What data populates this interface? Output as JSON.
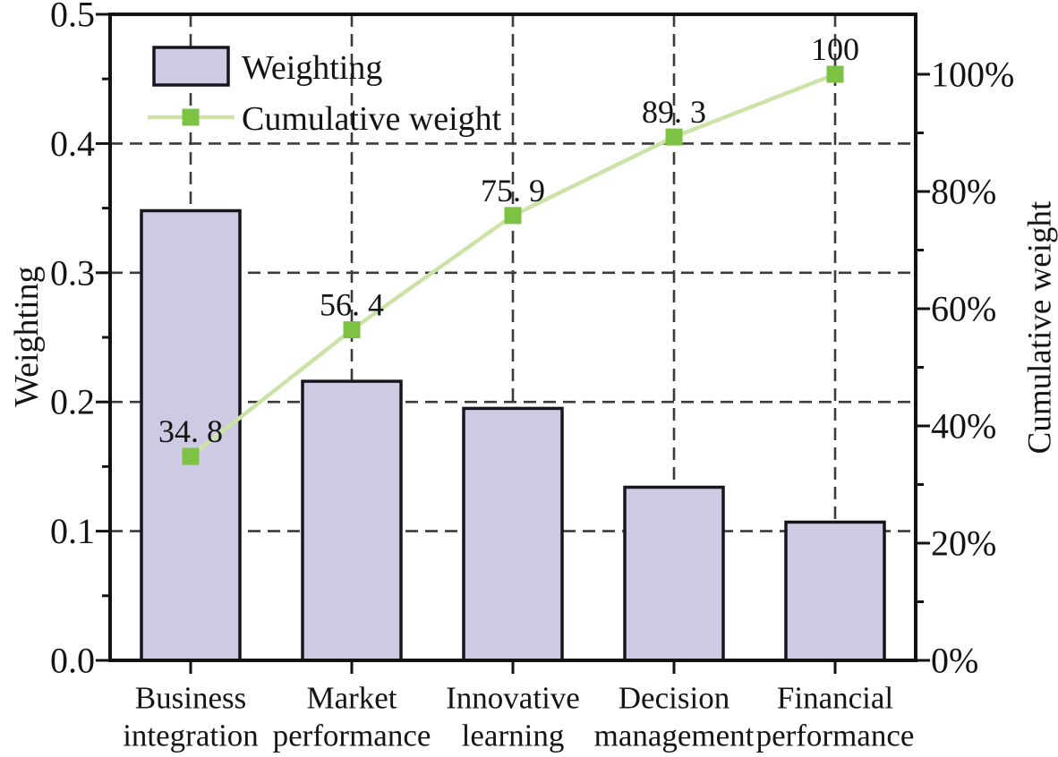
{
  "chart_data": {
    "type": "bar",
    "subtype": "pareto-combo (bars + cumulative line)",
    "title": "",
    "categories": [
      "Business integration",
      "Market performance",
      "Innovative learning",
      "Decision management",
      "Financial performance"
    ],
    "category_lines": [
      [
        "Business",
        "integration"
      ],
      [
        "Market",
        "performance"
      ],
      [
        "Innovative",
        "learning"
      ],
      [
        "Decision",
        "management"
      ],
      [
        "Financial",
        "performance"
      ]
    ],
    "series": [
      {
        "name": "Weighting",
        "type": "bar",
        "axis": "left",
        "values": [
          0.348,
          0.216,
          0.195,
          0.134,
          0.107
        ]
      },
      {
        "name": "Cumulative weight",
        "type": "line",
        "axis": "right",
        "values": [
          34.8,
          56.4,
          75.9,
          89.3,
          100
        ],
        "point_labels": [
          "34. 8",
          "56. 4",
          "75. 9",
          "89. 3",
          "100"
        ]
      }
    ],
    "left_axis": {
      "title": "Weighting",
      "min": 0,
      "max": 0.5,
      "major_ticks": [
        0,
        0.1,
        0.2,
        0.3,
        0.4,
        0.5
      ],
      "tick_labels": [
        "0.0",
        "0.1",
        "0.2",
        "0.3",
        "0.4",
        "0.5"
      ],
      "minor_ticks": [
        0.05,
        0.15,
        0.25,
        0.35,
        0.45
      ]
    },
    "right_axis": {
      "title": "Cumulative weight",
      "min": 0,
      "max": 110,
      "unit": "%",
      "major_ticks": [
        0,
        20,
        40,
        60,
        80,
        100
      ],
      "tick_labels": [
        "0%",
        "20%",
        "40%",
        "60%",
        "80%",
        "100%"
      ],
      "minor_ticks": [
        10,
        30,
        50,
        70,
        90
      ]
    },
    "grid": {
      "style": "dashed",
      "horizontal_at_left_values": [
        0.1,
        0.2,
        0.3,
        0.4
      ],
      "vertical": "at category centers"
    },
    "legend": {
      "position": "top-left-inside",
      "items": [
        {
          "label": "Weighting",
          "swatch": "bar"
        },
        {
          "label": "Cumulative weight",
          "swatch": "line-with-square-marker"
        }
      ]
    }
  },
  "colors": {
    "background": "#ffffff",
    "bar_fill": "#cecae3",
    "bar_stroke": "#16161f",
    "line": "#cbe3a6",
    "marker": "#7dc242",
    "grid": "#3b3b3b",
    "axis": "#121212",
    "text": "#141414",
    "data_label": "#33334a"
  }
}
